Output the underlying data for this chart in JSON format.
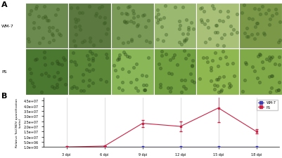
{
  "panel_label_A": "A",
  "panel_label_B": "B",
  "wm7_label": "WM-7",
  "ps_label": "PS",
  "x_labels": [
    "3 dpi",
    "6 dpi",
    "9 dpi",
    "12 dpi",
    "15 dpi",
    "18 dpi"
  ],
  "x_values": [
    3,
    6,
    9,
    12,
    15,
    18
  ],
  "wm7_y": [
    1.0,
    1.0,
    1.0,
    1.0,
    1.0,
    1.0
  ],
  "ps_y": [
    1.0,
    800000.0,
    23000000.0,
    20000000.0,
    38000000.0,
    15000000.0
  ],
  "ps_yerr": [
    0,
    200000.0,
    3500000.0,
    5000000.0,
    14000000.0,
    2000000.0
  ],
  "wm7_yerr": [
    0,
    0,
    0,
    0,
    0,
    0
  ],
  "wm7_color": "#4040b0",
  "ps_color": "#cc2244",
  "ylabel": "Relative ToLCNDV quantification\n(units)",
  "yticks": [
    1.0,
    5000000.0,
    10000000.0,
    15000000.0,
    20000000.0,
    25000000.0,
    30000000.0,
    35000000.0,
    40000000.0,
    45000000.0
  ],
  "ytick_labels": [
    "1.0e+00",
    "5.0e+06",
    "1.0e+07",
    "1.5e+07",
    "2.0e+07",
    "2.5e+07",
    "3.0e+07",
    "3.5e+07",
    "4.0e+07",
    "4.5e+07"
  ],
  "ylim": [
    0,
    48000000.0
  ],
  "bg_color": "#ffffff",
  "grid_color": "#d0d0d0",
  "photo_colors_row1": [
    "#5a7a3a",
    "#4a6a2a",
    "#6a8a3a",
    "#8aaa4a",
    "#9aaa4a",
    "#7a9a3a"
  ],
  "photo_colors_row2": [
    "#4a7a2a",
    "#5a8a3a",
    "#7aaa4a",
    "#6a9a3a",
    "#8aaa4a",
    "#7aaa4a"
  ],
  "label_col_color": "#e8e8e8",
  "divider_color": "#ffffff"
}
